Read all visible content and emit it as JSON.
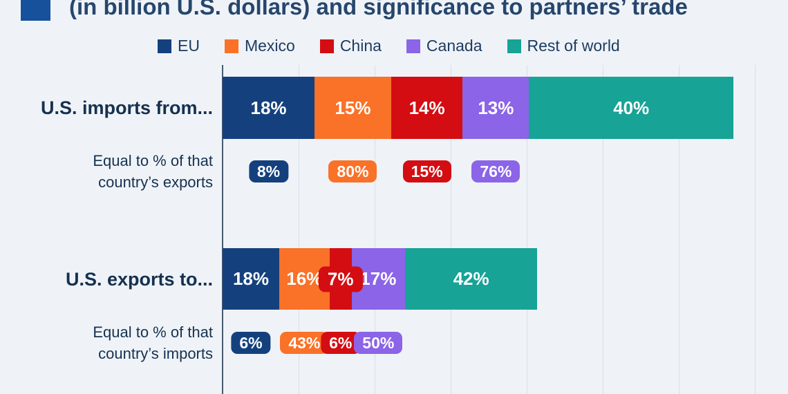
{
  "title": {
    "text": "(in billion U.S. dollars) and significance to partners’ trade"
  },
  "colors": {
    "background": "#eff3f8",
    "title_bullet": "#17519b",
    "title_text": "#26466d",
    "dark_text": "#16314f",
    "legend_text": "#1e3c61",
    "axis_line": "#49596d",
    "gridline": "#d8dee7",
    "label_on_bar": "#ffffff"
  },
  "legend": [
    {
      "label": "EU",
      "color": "#14417d",
      "icon": "swatch-navy"
    },
    {
      "label": "Mexico",
      "color": "#fa7128",
      "icon": "swatch-orange"
    },
    {
      "label": "China",
      "color": "#d40d12",
      "icon": "swatch-red"
    },
    {
      "label": "Canada",
      "color": "#8b64e8",
      "icon": "swatch-purple"
    },
    {
      "label": "Rest of world",
      "color": "#17a396",
      "icon": "swatch-teal"
    }
  ],
  "chart_data": {
    "type": "bar",
    "orientation": "horizontal",
    "stacked": true,
    "grid": true,
    "x_axis_labels_visible": false,
    "series_names": [
      "EU",
      "Mexico",
      "China",
      "Canada",
      "Rest of world"
    ],
    "groups": [
      {
        "bar_label": "U.S. imports from...",
        "relative_length": 1.0,
        "segments_pct": [
          18,
          15,
          14,
          13,
          40
        ],
        "sub_label": "Equal to % of that country’s exports",
        "sub_badges_pct": [
          8,
          80,
          15,
          76
        ]
      },
      {
        "bar_label": "U.S. exports to...",
        "relative_length": 0.616,
        "segments_pct": [
          18,
          16,
          7,
          17,
          42
        ],
        "sub_label": "Equal to % of that country’s imports",
        "sub_badges_pct": [
          6,
          43,
          6,
          50
        ]
      }
    ]
  }
}
